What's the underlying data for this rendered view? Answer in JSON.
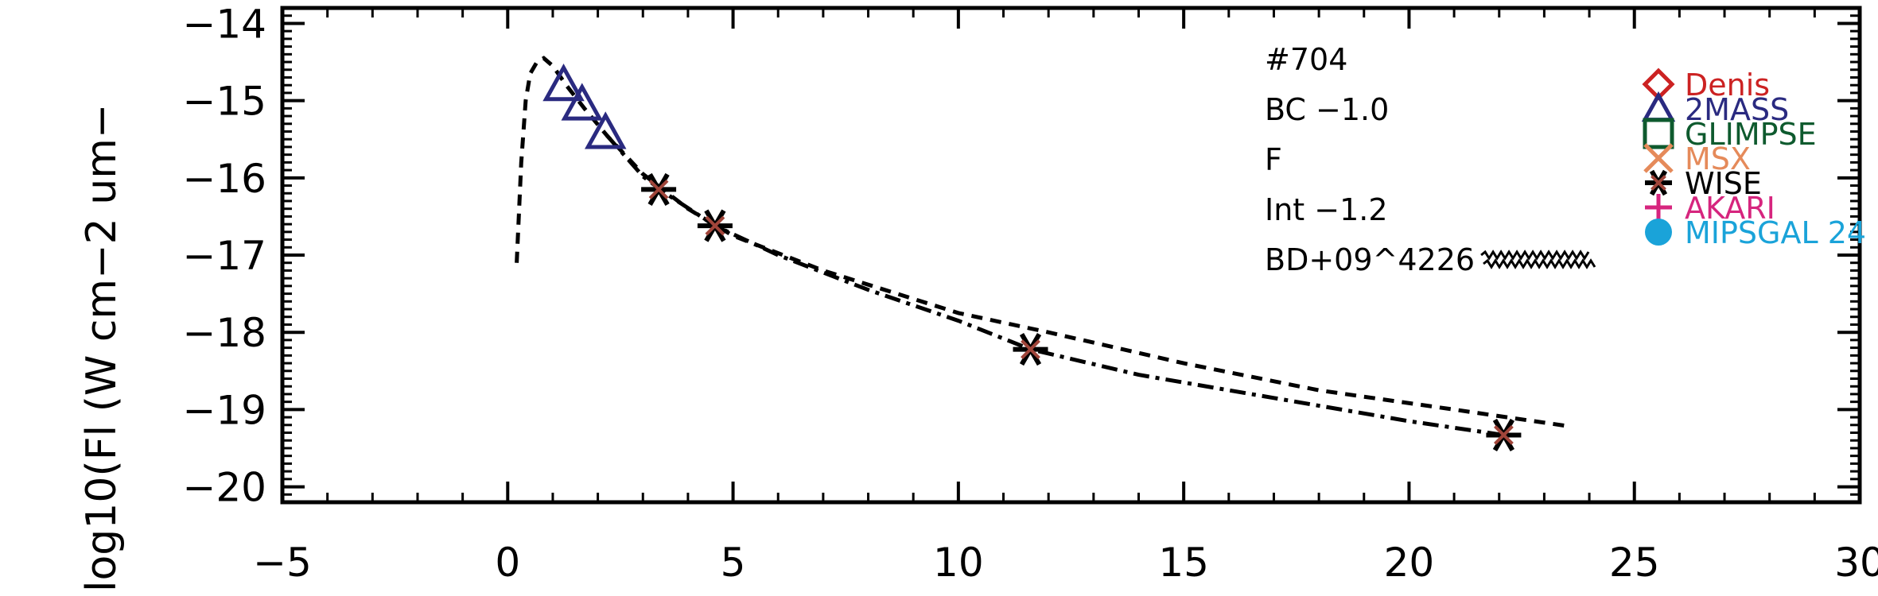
{
  "chart_data": {
    "type": "scatter",
    "title": "",
    "xlabel": "",
    "ylabel": "log10(Fl (W cm−2 um−",
    "xlim": [
      -5,
      30
    ],
    "ylim": [
      -20.2,
      -13.8
    ],
    "x_ticks": [
      {
        "value": -5,
        "label": "−5"
      },
      {
        "value": 0,
        "label": "0"
      },
      {
        "value": 5,
        "label": "5"
      },
      {
        "value": 10,
        "label": "10"
      },
      {
        "value": 15,
        "label": "15"
      },
      {
        "value": 20,
        "label": "20"
      },
      {
        "value": 25,
        "label": "25"
      },
      {
        "value": 30,
        "label": "30"
      }
    ],
    "y_ticks": [
      {
        "value": -14,
        "label": "−14"
      },
      {
        "value": -15,
        "label": "−15"
      },
      {
        "value": -16,
        "label": "−16"
      },
      {
        "value": -17,
        "label": "−17"
      },
      {
        "value": -18,
        "label": "−18"
      },
      {
        "value": -19,
        "label": "−19"
      },
      {
        "value": -20,
        "label": "−20"
      }
    ],
    "annotations": [
      "#704",
      "BC −1.0",
      "F",
      "Int −1.2",
      "BD+09^4226"
    ],
    "legend": {
      "placement": "right",
      "entries": [
        {
          "label": "Denis",
          "marker": "diamond",
          "color": "#cc2222"
        },
        {
          "label": "2MASS",
          "marker": "triangle",
          "color": "#2a2a80"
        },
        {
          "label": "GLIMPSE",
          "marker": "square",
          "color": "#0e5a2e"
        },
        {
          "label": "MSX",
          "marker": "x",
          "color": "#e58a5a"
        },
        {
          "label": "WISE",
          "marker": "asterisk",
          "color": "#000000"
        },
        {
          "label": "AKARI",
          "marker": "plus",
          "color": "#d6257e"
        },
        {
          "label": "MIPSGAL 24",
          "marker": "circle",
          "color": "#1aa3d9"
        }
      ]
    },
    "series": [
      {
        "name": "2MASS",
        "marker": "triangle",
        "color": "#2a2a80",
        "points": [
          [
            1.24,
            -14.8
          ],
          [
            1.65,
            -15.05
          ],
          [
            2.17,
            -15.42
          ]
        ]
      },
      {
        "name": "WISE",
        "marker": "asterisk",
        "color": "#000000",
        "points": [
          [
            3.35,
            -16.15
          ],
          [
            4.6,
            -16.62
          ],
          [
            11.6,
            -18.22
          ],
          [
            22.1,
            -19.33
          ]
        ]
      },
      {
        "name": "model_dashed",
        "style": "dashed",
        "color": "#000000",
        "points": [
          [
            0.2,
            -17.1
          ],
          [
            0.3,
            -15.8
          ],
          [
            0.4,
            -15.0
          ],
          [
            0.5,
            -14.65
          ],
          [
            0.65,
            -14.5
          ],
          [
            0.8,
            -14.45
          ],
          [
            1.0,
            -14.55
          ],
          [
            1.3,
            -14.8
          ],
          [
            1.7,
            -15.1
          ],
          [
            2.2,
            -15.45
          ],
          [
            3.0,
            -15.95
          ],
          [
            4.0,
            -16.4
          ],
          [
            5.0,
            -16.75
          ],
          [
            7.0,
            -17.2
          ],
          [
            10.0,
            -17.75
          ],
          [
            12.0,
            -18.0
          ],
          [
            15.0,
            -18.4
          ],
          [
            18.0,
            -18.75
          ],
          [
            21.0,
            -19.0
          ],
          [
            23.6,
            -19.22
          ]
        ]
      },
      {
        "name": "model_dashdot",
        "style": "dashdot",
        "color": "#000000",
        "points": [
          [
            2.2,
            -15.45
          ],
          [
            3.0,
            -15.98
          ],
          [
            3.5,
            -16.2
          ],
          [
            4.6,
            -16.62
          ],
          [
            6.0,
            -17.0
          ],
          [
            8.0,
            -17.45
          ],
          [
            10.0,
            -17.85
          ],
          [
            11.6,
            -18.22
          ],
          [
            14.0,
            -18.55
          ],
          [
            17.0,
            -18.85
          ],
          [
            20.0,
            -19.15
          ],
          [
            22.1,
            -19.33
          ]
        ]
      },
      {
        "name": "model_wavy",
        "style": "wavy",
        "color": "#000000",
        "points": [
          [
            21.6,
            -17.0
          ],
          [
            24.0,
            -17.0
          ]
        ]
      }
    ],
    "grid": false
  }
}
